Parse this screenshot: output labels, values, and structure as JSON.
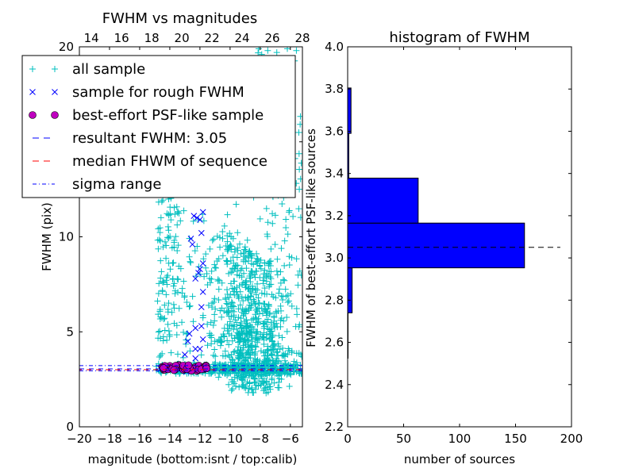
{
  "chart_data": [
    {
      "type": "scatter",
      "title": "FWHM vs magnitudes",
      "xlabel": "magnitude (bottom:isnt / top:calib)",
      "ylabel": "FWHM (pix)",
      "xlim": [
        -20,
        -5.2
      ],
      "ylim": [
        0,
        20
      ],
      "xticks": [
        -20,
        -18,
        -16,
        -14,
        -12,
        -10,
        -8,
        -6
      ],
      "xtick_labels": [
        "−20",
        "−18",
        "−16",
        "−14",
        "−12",
        "−10",
        "−8",
        "−6"
      ],
      "yticks": [
        0,
        5,
        10,
        15,
        20
      ],
      "ytick_labels": [
        "0",
        "5",
        "10",
        "15",
        "20"
      ],
      "top_xticks": [
        14,
        16,
        18,
        20,
        22,
        24,
        26,
        28
      ],
      "top_xtick_labels": [
        "14",
        "16",
        "18",
        "20",
        "22",
        "24",
        "26",
        "28"
      ],
      "calib_offset": 33.2,
      "legend_placement": "upper-left",
      "legend": [
        {
          "label": "all sample",
          "marker": "plus",
          "color": "#00bfbf"
        },
        {
          "label": "sample for rough FWHM",
          "marker": "x",
          "color": "#0000ff"
        },
        {
          "label": "best-effort PSF-like sample",
          "marker": "circle",
          "color": "#bf00bf"
        },
        {
          "label": "resultant FWHM: 3.05",
          "marker": "dashed",
          "color": "#0000ff"
        },
        {
          "label": "median FHWM of sequence",
          "marker": "dashed",
          "color": "#ff0000"
        },
        {
          "label": "sigma range",
          "marker": "dashdot",
          "color": "#0000ff"
        }
      ],
      "all_sample_clusters": [
        {
          "n": 140,
          "x": [
            -14.9,
            -13.4
          ],
          "y": [
            2.9,
            13.5
          ]
        },
        {
          "n": 90,
          "x": [
            -13.4,
            -10.3
          ],
          "y": [
            2.9,
            11.5
          ]
        },
        {
          "n": 700,
          "x": [
            -10.2,
            -5.2
          ],
          "y": [
            2.5,
            9
          ],
          "dense_center": [
            -8.5,
            5
          ]
        },
        {
          "n": 200,
          "x": [
            -10.2,
            -5.2
          ],
          "y": [
            3,
            20
          ]
        },
        {
          "n": 300,
          "x": [
            -14.6,
            -5.2
          ],
          "y": [
            2.8,
            3.3
          ]
        }
      ],
      "all_sample_outliers": [
        [
          -8.8,
          1.8
        ],
        [
          -7.4,
          2.1
        ],
        [
          -14.3,
          12.3
        ],
        [
          -13.8,
          12.9
        ],
        [
          -12.9,
          12.7
        ],
        [
          -8.1,
          19.9
        ],
        [
          -7.5,
          19.8
        ],
        [
          -6.9,
          19.7
        ],
        [
          -6.2,
          19.9
        ],
        [
          -5.6,
          19.8
        ],
        [
          -7.9,
          19.6
        ]
      ],
      "rough_sample": [
        [
          -12.2,
          11.0
        ],
        [
          -12.0,
          10.9
        ],
        [
          -11.8,
          11.3
        ],
        [
          -12.4,
          11.1
        ],
        [
          -12.6,
          9.9
        ],
        [
          -12.5,
          9.6
        ],
        [
          -11.9,
          10.2
        ],
        [
          -11.8,
          8.6
        ],
        [
          -12.0,
          8.3
        ],
        [
          -12.1,
          8.1
        ],
        [
          -12.3,
          7.8
        ],
        [
          -11.8,
          7.1
        ],
        [
          -11.9,
          6.3
        ],
        [
          -12.8,
          4.5
        ],
        [
          -12.3,
          4.1
        ],
        [
          -12.0,
          4.1
        ],
        [
          -11.8,
          4.6
        ],
        [
          -12.7,
          4.9
        ],
        [
          -12.3,
          5.2
        ],
        [
          -11.9,
          5.3
        ],
        [
          -13.0,
          3.8
        ],
        [
          -12.9,
          2.9
        ],
        [
          -12.3,
          3.6
        ],
        [
          -11.6,
          3.2
        ]
      ],
      "best_effort_sample": [
        [
          -14.5,
          3.15
        ],
        [
          -14.2,
          3.1
        ],
        [
          -14.0,
          3.2
        ],
        [
          -13.8,
          3.05
        ],
        [
          -13.6,
          3.1
        ],
        [
          -13.3,
          3.15
        ],
        [
          -13.1,
          3.0
        ],
        [
          -12.9,
          3.2
        ],
        [
          -12.7,
          3.1
        ],
        [
          -12.5,
          3.05
        ],
        [
          -12.3,
          3.15
        ],
        [
          -12.1,
          3.2
        ],
        [
          -11.9,
          3.1
        ],
        [
          -11.7,
          3.05
        ],
        [
          -11.6,
          3.2
        ],
        [
          -14.4,
          3.0
        ],
        [
          -13.4,
          3.25
        ],
        [
          -12.2,
          2.95
        ]
      ],
      "resultant_fwhm": 3.05,
      "median_fwhm": 3.05,
      "sigma_range": [
        2.95,
        3.22
      ]
    },
    {
      "type": "bar",
      "orientation": "horizontal",
      "title": "histogram of FWHM",
      "xlabel": "number of sources",
      "ylabel": "FWHM of best-effort PSF-like sources",
      "xlim": [
        0,
        200
      ],
      "ylim": [
        2.2,
        4.0
      ],
      "xticks": [
        0,
        50,
        100,
        150,
        200
      ],
      "xtick_labels": [
        "0",
        "50",
        "100",
        "150",
        "200"
      ],
      "yticks": [
        2.2,
        2.4,
        2.6,
        2.8,
        3.0,
        3.2,
        3.4,
        3.6,
        3.8,
        4.0
      ],
      "ytick_labels": [
        "2.2",
        "2.4",
        "2.6",
        "2.8",
        "3.0",
        "3.2",
        "3.4",
        "3.6",
        "3.8",
        "4.0"
      ],
      "bin_edges": [
        2.525,
        2.74,
        2.953,
        3.165,
        3.378,
        3.59,
        3.805
      ],
      "counts": [
        0.3,
        4,
        158,
        63,
        1,
        3
      ],
      "bar_color": "#0000ff",
      "reference_line": {
        "value": 3.05,
        "x_extent": [
          0,
          190
        ]
      }
    }
  ]
}
